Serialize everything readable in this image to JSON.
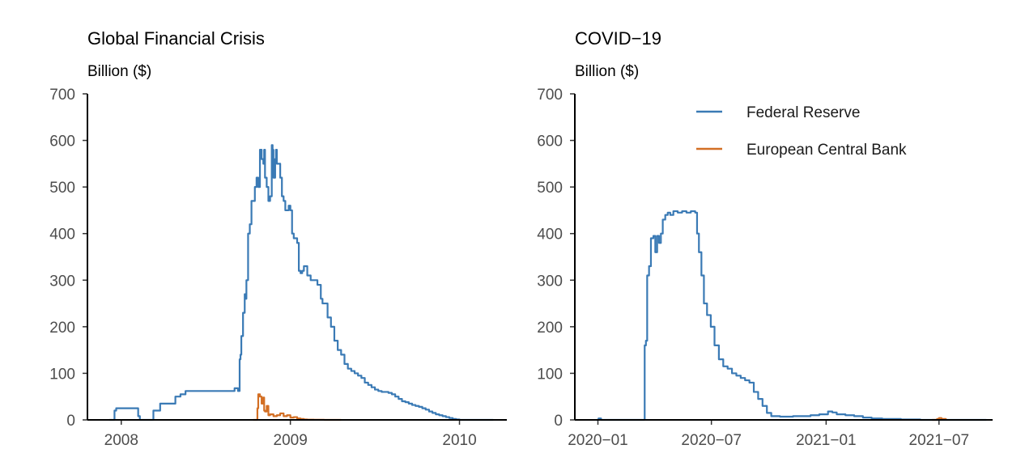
{
  "colors": {
    "fed": "#3a7ab5",
    "ecb": "#d36f24"
  },
  "legend": {
    "placement": "top-right of second panel",
    "items": [
      {
        "label": "Federal Reserve",
        "color": "#3a7ab5"
      },
      {
        "label": "European Central Bank",
        "color": "#d36f24"
      }
    ]
  },
  "chart_data": [
    {
      "type": "line",
      "title": "Global Financial Crisis",
      "ylabel": "Billion ($)",
      "xlabel": "",
      "ylim": [
        0,
        700
      ],
      "yticks": [
        0,
        100,
        200,
        300,
        400,
        500,
        600,
        700
      ],
      "xlim": [
        2007.8,
        2010.28
      ],
      "xticks": [
        2008,
        2009,
        2010
      ],
      "xtick_labels": [
        "2008",
        "2009",
        "2010"
      ],
      "grid": false,
      "series": [
        {
          "name": "Federal Reserve",
          "color": "#3a7ab5",
          "x": [
            2007.93,
            2007.96,
            2007.97,
            2008.07,
            2008.1,
            2008.11,
            2008.18,
            2008.19,
            2008.23,
            2008.27,
            2008.32,
            2008.35,
            2008.38,
            2008.41,
            2008.45,
            2008.5,
            2008.55,
            2008.6,
            2008.65,
            2008.67,
            2008.69,
            2008.7,
            2008.7,
            2008.705,
            2008.71,
            2008.72,
            2008.73,
            2008.735,
            2008.74,
            2008.75,
            2008.76,
            2008.77,
            2008.78,
            2008.79,
            2008.8,
            2008.81,
            2008.82,
            2008.83,
            2008.84,
            2008.845,
            2008.85,
            2008.86,
            2008.87,
            2008.88,
            2008.89,
            2008.895,
            2008.9,
            2008.91,
            2008.915,
            2008.92,
            2008.93,
            2008.94,
            2008.95,
            2008.96,
            2008.97,
            2008.98,
            2008.99,
            2009.0,
            2009.01,
            2009.02,
            2009.03,
            2009.04,
            2009.05,
            2009.06,
            2009.07,
            2009.08,
            2009.09,
            2009.1,
            2009.11,
            2009.12,
            2009.14,
            2009.16,
            2009.18,
            2009.19,
            2009.2,
            2009.22,
            2009.24,
            2009.26,
            2009.28,
            2009.3,
            2009.32,
            2009.34,
            2009.36,
            2009.38,
            2009.4,
            2009.42,
            2009.44,
            2009.46,
            2009.48,
            2009.5,
            2009.52,
            2009.54,
            2009.56,
            2009.58,
            2009.6,
            2009.62,
            2009.64,
            2009.66,
            2009.68,
            2009.7,
            2009.72,
            2009.74,
            2009.76,
            2009.78,
            2009.8,
            2009.82,
            2009.84,
            2009.86,
            2009.88,
            2009.9,
            2009.92,
            2009.94,
            2009.96,
            2009.98,
            2010.0,
            2010.02,
            2010.04,
            2010.06,
            2010.1,
            2010.15,
            2010.2
          ],
          "y": [
            0,
            20,
            25,
            25,
            8,
            0,
            0,
            20,
            35,
            35,
            50,
            55,
            62,
            62,
            62,
            62,
            62,
            62,
            62,
            68,
            62,
            62,
            130,
            140,
            180,
            230,
            270,
            260,
            300,
            400,
            420,
            470,
            470,
            500,
            520,
            500,
            580,
            560,
            550,
            580,
            520,
            500,
            470,
            480,
            590,
            580,
            520,
            560,
            580,
            550,
            550,
            520,
            480,
            470,
            450,
            450,
            460,
            450,
            400,
            390,
            390,
            380,
            320,
            315,
            320,
            330,
            330,
            310,
            310,
            300,
            300,
            290,
            260,
            250,
            250,
            220,
            200,
            170,
            150,
            140,
            120,
            110,
            105,
            100,
            95,
            90,
            80,
            75,
            70,
            65,
            62,
            60,
            60,
            58,
            55,
            50,
            45,
            40,
            38,
            35,
            32,
            30,
            28,
            25,
            22,
            18,
            15,
            12,
            10,
            8,
            6,
            4,
            2,
            1,
            0,
            0,
            0,
            0,
            0,
            0,
            0
          ],
          "x_clean": []
        },
        {
          "name": "European Central Bank",
          "color": "#d36f24",
          "x": [
            2008.78,
            2008.8,
            2008.805,
            2008.81,
            2008.82,
            2008.83,
            2008.84,
            2008.845,
            2008.85,
            2008.86,
            2008.87,
            2008.88,
            2008.9,
            2008.92,
            2008.94,
            2008.96,
            2008.98,
            2009.0,
            2009.02,
            2009.04,
            2009.06,
            2009.08,
            2009.1,
            2009.14,
            2009.2,
            2009.3
          ],
          "y": [
            0,
            0,
            25,
            55,
            50,
            35,
            48,
            20,
            18,
            30,
            10,
            12,
            8,
            10,
            14,
            8,
            10,
            5,
            6,
            3,
            2,
            1,
            0.5,
            0.3,
            0,
            0
          ]
        }
      ]
    },
    {
      "type": "line",
      "title": "COVID−19",
      "ylabel": "Billion ($)",
      "xlabel": "",
      "ylim": [
        0,
        700
      ],
      "yticks": [
        0,
        100,
        200,
        300,
        400,
        500,
        600,
        700
      ],
      "xlim": [
        "2019-11-25",
        "2021-09-25"
      ],
      "xticks": [
        "2020-01-01",
        "2020-07-01",
        "2021-01-01",
        "2021-07-01"
      ],
      "xtick_labels": [
        "2020−01",
        "2020−07",
        "2021−01",
        "2021−07"
      ],
      "grid": false,
      "series": [
        {
          "name": "Federal Reserve",
          "color": "#3a7ab5",
          "x": [
            "2019-12-30",
            "2020-01-02",
            "2020-01-06",
            "2020-03-15",
            "2020-03-16",
            "2020-03-18",
            "2020-03-20",
            "2020-03-23",
            "2020-03-26",
            "2020-03-30",
            "2020-04-02",
            "2020-04-05",
            "2020-04-08",
            "2020-04-11",
            "2020-04-14",
            "2020-04-18",
            "2020-04-22",
            "2020-04-26",
            "2020-05-01",
            "2020-05-08",
            "2020-05-15",
            "2020-05-22",
            "2020-05-29",
            "2020-06-05",
            "2020-06-08",
            "2020-06-11",
            "2020-06-15",
            "2020-06-19",
            "2020-06-24",
            "2020-06-30",
            "2020-07-06",
            "2020-07-13",
            "2020-07-20",
            "2020-07-27",
            "2020-08-03",
            "2020-08-10",
            "2020-08-17",
            "2020-08-24",
            "2020-08-31",
            "2020-09-07",
            "2020-09-14",
            "2020-09-21",
            "2020-09-28",
            "2020-10-05",
            "2020-10-12",
            "2020-10-19",
            "2020-10-26",
            "2020-11-09",
            "2020-11-23",
            "2020-12-07",
            "2020-12-21",
            "2021-01-04",
            "2021-01-11",
            "2021-01-18",
            "2021-02-01",
            "2021-02-15",
            "2021-03-01",
            "2021-03-15",
            "2021-04-01",
            "2021-05-01",
            "2021-06-01",
            "2021-07-01",
            "2021-08-01",
            "2021-09-15"
          ],
          "y": [
            0,
            3,
            0,
            0,
            160,
            170,
            310,
            330,
            390,
            395,
            360,
            395,
            380,
            400,
            430,
            440,
            445,
            440,
            448,
            445,
            448,
            445,
            448,
            445,
            400,
            360,
            310,
            250,
            225,
            200,
            160,
            130,
            115,
            110,
            100,
            95,
            90,
            85,
            80,
            60,
            45,
            30,
            15,
            8,
            8,
            7,
            7,
            8,
            8,
            10,
            12,
            18,
            16,
            12,
            10,
            8,
            5,
            3,
            2,
            1,
            0,
            0,
            0,
            0
          ]
        },
        {
          "name": "European Central Bank",
          "color": "#d36f24",
          "x": [
            "2021-06-20",
            "2021-06-28",
            "2021-07-01",
            "2021-07-05",
            "2021-07-12"
          ],
          "y": [
            0,
            2,
            4,
            2,
            0
          ]
        }
      ]
    }
  ]
}
